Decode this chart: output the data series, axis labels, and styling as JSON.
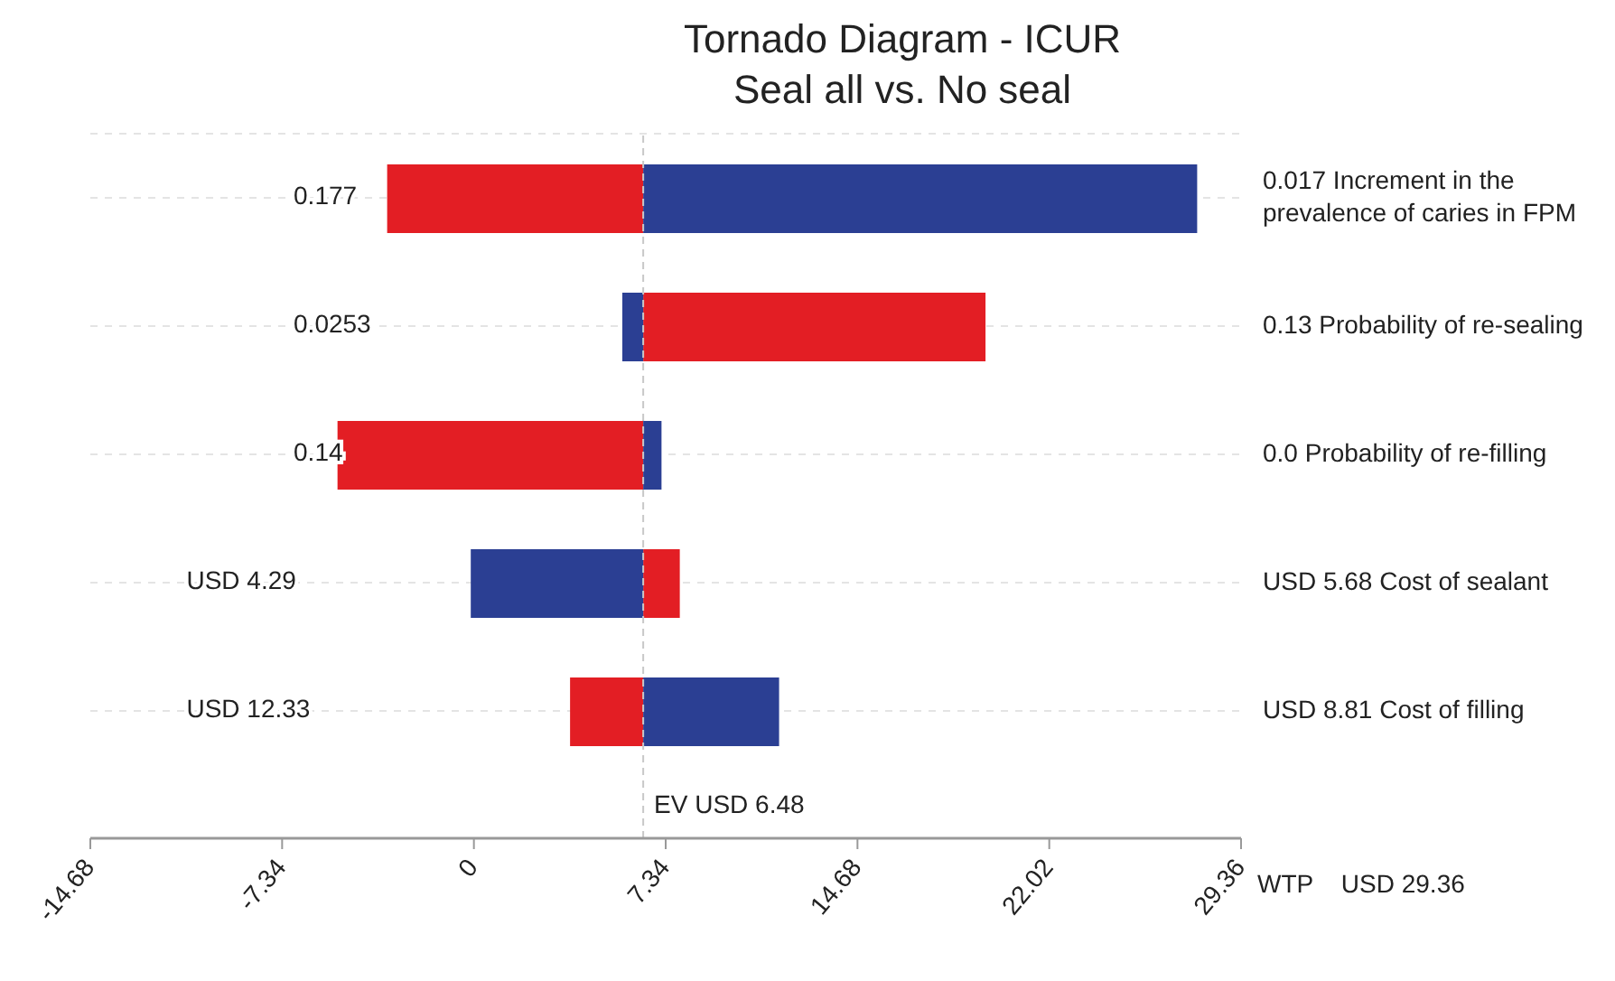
{
  "chart_data": {
    "type": "bar",
    "orientation": "horizontal",
    "title": "Tornado Diagram - ICUR",
    "subtitle": "Seal all vs. No seal",
    "categories": [
      "0.017 Increment in the prevalence of caries in FPM",
      "0.13 Probability of re-sealing",
      "0.0 Probability of re-filling",
      "USD 5.68 Cost of sealant",
      "USD 8.81 Cost of filling"
    ],
    "series": [
      {
        "color": "#e31e24",
        "base": [
          6.48,
          6.48,
          6.48,
          6.48,
          6.48
        ],
        "values": [
          -9.8,
          13.1,
          -11.7,
          1.4,
          -2.8
        ]
      },
      {
        "color": "#2b3f93",
        "base": [
          6.48,
          6.48,
          6.48,
          6.48,
          6.48
        ],
        "values": [
          21.2,
          -0.8,
          0.7,
          -6.6,
          5.2
        ]
      }
    ],
    "xlim": [
      -14.68,
      29.36
    ],
    "xticks": [
      -14.68,
      -7.34,
      0,
      7.34,
      14.68,
      22.02,
      29.36
    ],
    "ref_lines": [
      {
        "axis": "x",
        "value": 6.48,
        "label": "EV  USD 6.48",
        "color": "#c8c8c8",
        "line_style": "dashed"
      }
    ],
    "annotations": [
      "0.177",
      "0.0253",
      "0.14",
      "USD 4.29",
      "USD 12.33",
      "WTP    USD 29.36"
    ],
    "grid": "y"
  }
}
